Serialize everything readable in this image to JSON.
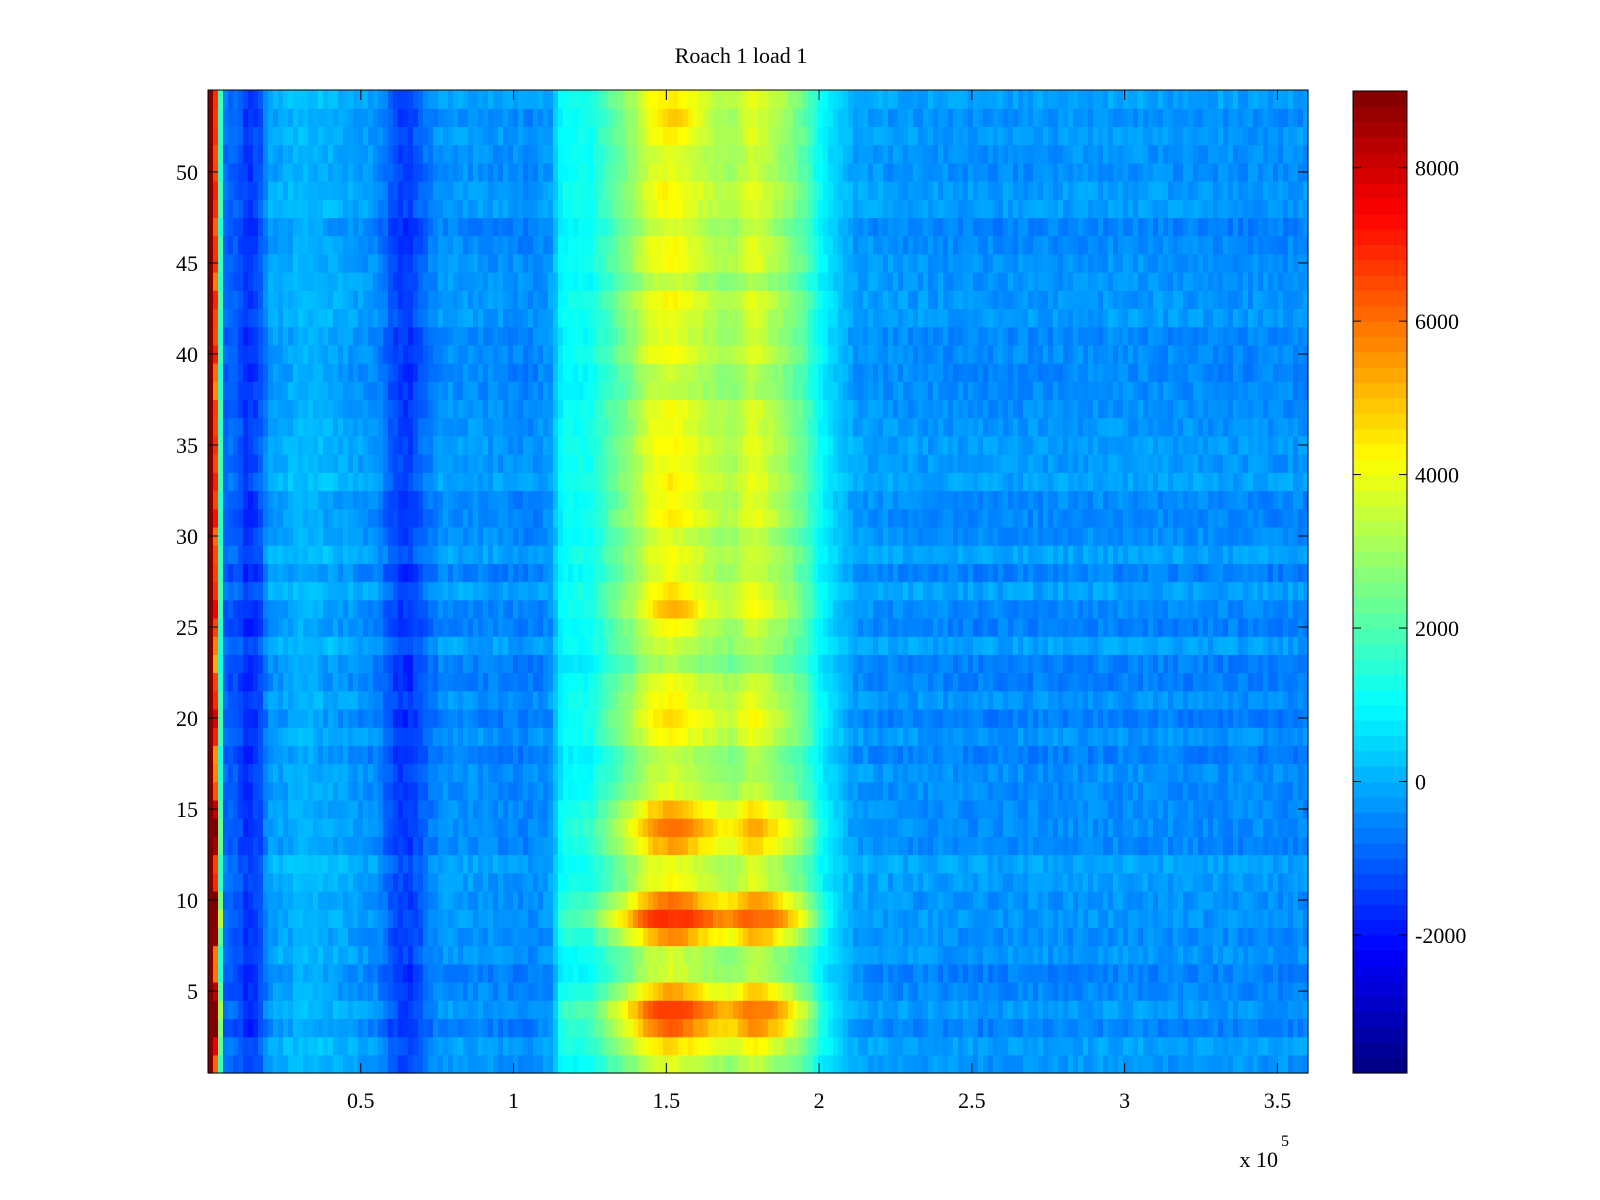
{
  "chart_data": {
    "type": "heatmap",
    "title": "Roach 1 load 1",
    "xlabel": "",
    "ylabel": "",
    "x_exponent_label": "x 10",
    "x_exponent_power": "5",
    "xlim": [
      0,
      360000
    ],
    "ylim": [
      0.5,
      54.5
    ],
    "x_ticks": [
      50000,
      100000,
      150000,
      200000,
      250000,
      300000,
      350000
    ],
    "x_tick_labels": [
      "0.5",
      "1",
      "1.5",
      "2",
      "2.5",
      "3",
      "3.5"
    ],
    "y_ticks": [
      5,
      10,
      15,
      20,
      25,
      30,
      35,
      40,
      45,
      50
    ],
    "y_tick_labels": [
      "5",
      "10",
      "15",
      "20",
      "25",
      "30",
      "35",
      "40",
      "45",
      "50"
    ],
    "colorbar": {
      "colormap": "jet",
      "clim": [
        -3800,
        9000
      ],
      "ticks": [
        -2000,
        0,
        2000,
        4000,
        6000,
        8000
      ],
      "tick_labels": [
        "-2000",
        "0",
        "2000",
        "4000",
        "6000",
        "8000"
      ]
    },
    "rows": 54,
    "column_profile": {
      "x": [
        0,
        1500,
        5000,
        10000,
        13000,
        17000,
        20000,
        25000,
        30000,
        40000,
        45000,
        55000,
        62000,
        66000,
        72000,
        77000,
        85000,
        95000,
        105000,
        112000,
        116000,
        125000,
        130000,
        138000,
        145000,
        152000,
        155000,
        160000,
        167000,
        172000,
        177000,
        180000,
        183000,
        190000,
        196000,
        200000,
        205000,
        212000,
        220000,
        250000,
        300000,
        360000
      ],
      "values": [
        9000,
        9000,
        -900,
        -1100,
        -1700,
        -1200,
        -200,
        -100,
        100,
        -50,
        -150,
        -400,
        -1400,
        -1500,
        -700,
        -300,
        -350,
        -400,
        -500,
        -300,
        1000,
        1100,
        1700,
        2600,
        3600,
        3900,
        3700,
        3400,
        3000,
        2900,
        3500,
        3500,
        3200,
        2600,
        1900,
        1000,
        400,
        -200,
        -300,
        -400,
        -350,
        -450
      ]
    },
    "row_modulation": {
      "rows": [
        2,
        3,
        4,
        5,
        8,
        9,
        10,
        13,
        14,
        15,
        19,
        20,
        21,
        23,
        26,
        31,
        33,
        36,
        40,
        43,
        48,
        49,
        53
      ],
      "factors": [
        1.2,
        1.6,
        1.75,
        1.3,
        1.4,
        1.9,
        1.5,
        1.35,
        1.5,
        1.3,
        1.1,
        1.25,
        1.1,
        0.85,
        1.2,
        1.15,
        1.1,
        1.05,
        1.1,
        1.1,
        1.05,
        1.1,
        1.05
      ]
    },
    "hot_spots": [
      {
        "x": 153000,
        "row": 4,
        "value": 6600
      },
      {
        "x": 153000,
        "row": 9,
        "value": 6700
      },
      {
        "x": 153000,
        "row": 14,
        "value": 6000
      },
      {
        "x": 181000,
        "row": 4,
        "value": 5800
      },
      {
        "x": 181000,
        "row": 9,
        "value": 6000
      },
      {
        "x": 153000,
        "row": 26,
        "value": 5200
      },
      {
        "x": 153000,
        "row": 53,
        "value": 4900
      }
    ]
  }
}
